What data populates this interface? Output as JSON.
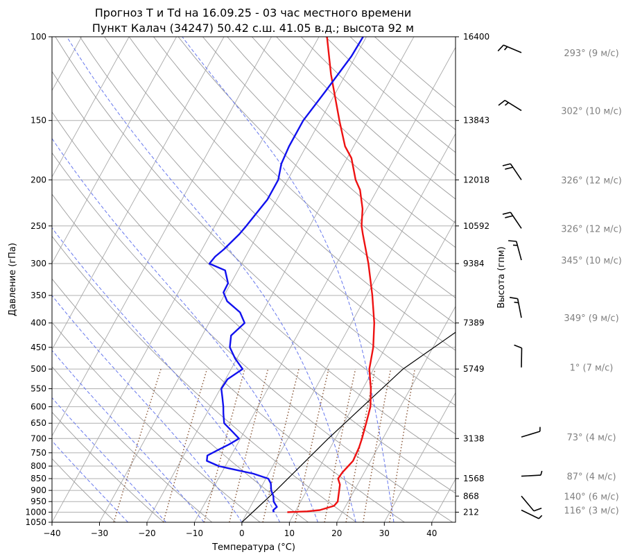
{
  "chart_data": {
    "type": "line",
    "title": [
      "Прогноз T и Td на 16.09.25 - 03 час местного времени",
      "Пункт Калач (34247) 50.42 с.ш. 41.05 в.д.; высота 92 м"
    ],
    "xlabel": "Температура (°C)",
    "ylabel": "Давление (гПа)",
    "ylabel_right": "Высота (гпм)",
    "x_ticks": [
      -40,
      -30,
      -20,
      -10,
      0,
      10,
      20,
      30,
      40
    ],
    "xlim": [
      -40,
      45
    ],
    "y_ticks": [
      100,
      150,
      200,
      250,
      300,
      350,
      400,
      450,
      500,
      550,
      600,
      650,
      700,
      750,
      800,
      850,
      900,
      950,
      1000,
      1050
    ],
    "ylim": [
      1050,
      100
    ],
    "y_scale": "log",
    "height_labels": [
      {
        "p": 100,
        "label": "16400"
      },
      {
        "p": 150,
        "label": "13843"
      },
      {
        "p": 200,
        "label": "12018"
      },
      {
        "p": 250,
        "label": "10592"
      },
      {
        "p": 300,
        "label": "9384"
      },
      {
        "p": 400,
        "label": "7389"
      },
      {
        "p": 500,
        "label": "5749"
      },
      {
        "p": 700,
        "label": "3138"
      },
      {
        "p": 850,
        "label": "1568"
      },
      {
        "p": 925,
        "label": "868"
      },
      {
        "p": 1000,
        "label": "212"
      }
    ],
    "series": [
      {
        "color": "#ee1111",
        "points": [
          [
            1000,
            8.4
          ],
          [
            996,
            12.5
          ],
          [
            990,
            15.0
          ],
          [
            970,
            17.5
          ],
          [
            950,
            17.8
          ],
          [
            925,
            17.3
          ],
          [
            900,
            16.8
          ],
          [
            875,
            16.3
          ],
          [
            850,
            15.2
          ],
          [
            825,
            15.4
          ],
          [
            800,
            15.9
          ],
          [
            780,
            16.3
          ],
          [
            760,
            16.2
          ],
          [
            730,
            16.0
          ],
          [
            700,
            15.6
          ],
          [
            650,
            14.7
          ],
          [
            600,
            13.7
          ],
          [
            550,
            11.7
          ],
          [
            500,
            9.1
          ],
          [
            450,
            7.4
          ],
          [
            400,
            4.8
          ],
          [
            350,
            1.2
          ],
          [
            300,
            -3.3
          ],
          [
            260,
            -7.9
          ],
          [
            250,
            -9.1
          ],
          [
            230,
            -10.9
          ],
          [
            210,
            -13.6
          ],
          [
            200,
            -15.7
          ],
          [
            180,
            -19.1
          ],
          [
            170,
            -21.8
          ],
          [
            150,
            -26.0
          ],
          [
            120,
            -33.1
          ],
          [
            100,
            -38.3
          ]
        ]
      },
      {
        "color": "#1111ee",
        "points": [
          [
            1000,
            5.5
          ],
          [
            990,
            5.2
          ],
          [
            975,
            5.6
          ],
          [
            950,
            4.3
          ],
          [
            925,
            3.6
          ],
          [
            900,
            2.5
          ],
          [
            870,
            1.6
          ],
          [
            850,
            0.5
          ],
          [
            830,
            -3.2
          ],
          [
            810,
            -8.7
          ],
          [
            800,
            -11.4
          ],
          [
            780,
            -14.5
          ],
          [
            760,
            -15.0
          ],
          [
            740,
            -13.4
          ],
          [
            720,
            -11.7
          ],
          [
            700,
            -10.3
          ],
          [
            680,
            -12.2
          ],
          [
            650,
            -15.2
          ],
          [
            620,
            -16.5
          ],
          [
            600,
            -17.3
          ],
          [
            575,
            -18.5
          ],
          [
            550,
            -19.8
          ],
          [
            525,
            -19.6
          ],
          [
            500,
            -17.6
          ],
          [
            475,
            -20.4
          ],
          [
            450,
            -22.8
          ],
          [
            425,
            -23.9
          ],
          [
            400,
            -22.5
          ],
          [
            380,
            -24.7
          ],
          [
            360,
            -28.7
          ],
          [
            345,
            -30.5
          ],
          [
            330,
            -30.6
          ],
          [
            310,
            -32.7
          ],
          [
            300,
            -36.8
          ],
          [
            290,
            -36.4
          ],
          [
            280,
            -35.4
          ],
          [
            260,
            -33.9
          ],
          [
            250,
            -33.4
          ],
          [
            220,
            -32.0
          ],
          [
            200,
            -32.0
          ],
          [
            185,
            -33.2
          ],
          [
            170,
            -33.6
          ],
          [
            150,
            -33.6
          ],
          [
            130,
            -32.3
          ],
          [
            110,
            -30.9
          ],
          [
            100,
            -30.7
          ]
        ]
      }
    ],
    "lcl_line": {
      "color": "#000000",
      "points": [
        [
          1050,
          0
        ],
        [
          900,
          3.5
        ],
        [
          700,
          8.5
        ],
        [
          500,
          16.2
        ],
        [
          375,
          27.2
        ]
      ]
    },
    "wind_barbs": [
      {
        "p": 108,
        "label": "293° (9 м/с)",
        "dir": 293,
        "speed": 9
      },
      {
        "p": 143,
        "label": "302° (10 м/с)",
        "dir": 302,
        "speed": 10
      },
      {
        "p": 200,
        "label": "326° (12 м/с)",
        "dir": 326,
        "speed": 12
      },
      {
        "p": 253,
        "label": "326° (12 м/с)",
        "dir": 326,
        "speed": 12
      },
      {
        "p": 295,
        "label": "345° (10 м/с)",
        "dir": 345,
        "speed": 10
      },
      {
        "p": 390,
        "label": "349° (9 м/с)",
        "dir": 349,
        "speed": 9
      },
      {
        "p": 496,
        "label": "1° (7 м/с)",
        "dir": 1,
        "speed": 7
      },
      {
        "p": 695,
        "label": "73° (4 м/с)",
        "dir": 73,
        "speed": 4
      },
      {
        "p": 840,
        "label": "87° (4 м/с)",
        "dir": 87,
        "speed": 4
      },
      {
        "p": 925,
        "label": "140° (6 м/с)",
        "dir": 140,
        "speed": 6
      },
      {
        "p": 990,
        "label": "116° (3 м/с)",
        "dir": 116,
        "speed": 3
      }
    ],
    "grid": true
  }
}
